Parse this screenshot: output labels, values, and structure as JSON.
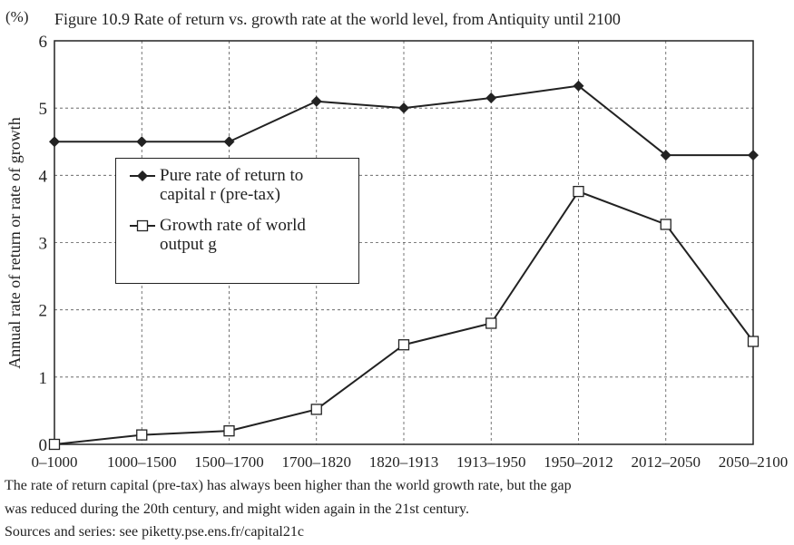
{
  "chart_data": {
    "type": "line",
    "title": "Figure 10.9 Rate of return vs. growth rate at the world level, from Antiquity until 2100",
    "y_unit": "(%)",
    "y_label": "Annual rate of return or rate of growth",
    "categories": [
      "0–1000",
      "1000–1500",
      "1500–1700",
      "1700–1820",
      "1820–1913",
      "1913–1950",
      "1950–2012",
      "2012–2050",
      "2050–2100"
    ],
    "series": [
      {
        "name": "Pure rate of return to capital r (pre-tax)",
        "color": "#222222",
        "marker": "diamond",
        "values": [
          4.5,
          4.5,
          4.5,
          5.1,
          5.0,
          5.15,
          5.33,
          4.3,
          4.3
        ]
      },
      {
        "name": "Growth rate of world output g",
        "color": "#222222",
        "marker": "square",
        "values": [
          0,
          0.14,
          0.2,
          0.52,
          1.48,
          1.8,
          3.76,
          3.27,
          1.53
        ]
      }
    ],
    "ylim": [
      0,
      6
    ],
    "yticks": [
      0,
      1,
      2,
      3,
      4,
      5,
      6
    ],
    "grid": true,
    "notes": [
      "The rate of return capital (pre-tax) has always been higher than the world growth rate, but the gap",
      "was reduced during the 20th century, and might widen again in the 21st century.",
      "Sources and series: see piketty.pse.ens.fr/capital21c"
    ]
  }
}
